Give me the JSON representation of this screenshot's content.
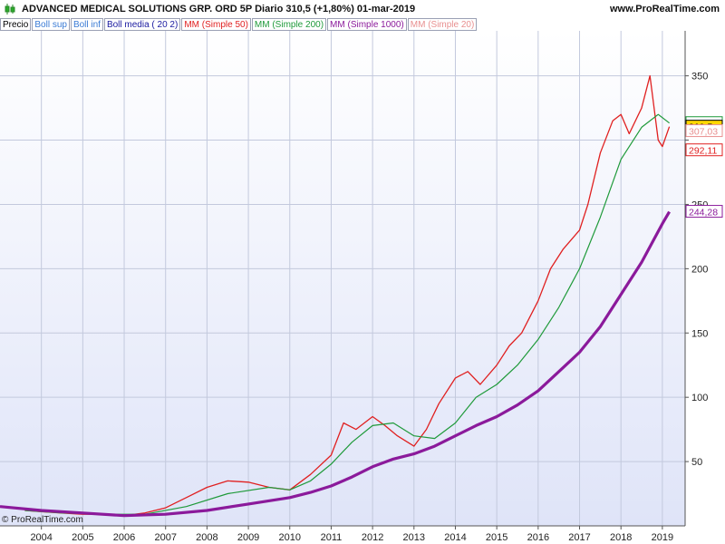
{
  "header": {
    "title": "ADVANCED MEDICAL SOLUTIONS GRP. ORD 5P   Diario   310,5 (+1,80%)   01-mar-2019",
    "site": "www.ProRealTime.com"
  },
  "legend": [
    {
      "label": "Precio",
      "color": "#000000"
    },
    {
      "label": "Boll sup",
      "color": "#3a7bd5"
    },
    {
      "label": "Boll inf",
      "color": "#3a7bd5"
    },
    {
      "label": "Boll media ( 20 2)",
      "color": "#1a1aa0"
    },
    {
      "label": "MM (Simple 50)",
      "color": "#e02020"
    },
    {
      "label": "MM (Simple 200)",
      "color": "#1f9a3a"
    },
    {
      "label": "MM (Simple 1000)",
      "color": "#8b1a9b"
    },
    {
      "label": "MM (Simple 20)",
      "color": "#e89090"
    }
  ],
  "copyright": "© ProRealTime.com",
  "chart_data": {
    "type": "line",
    "title": "ADVANCED MEDICAL SOLUTIONS GRP. ORD 5P",
    "ylim": [
      0,
      385
    ],
    "y_ticks": [
      50,
      100,
      150,
      200,
      250,
      300,
      350
    ],
    "y_tick_labels": [
      "50",
      "100",
      "150",
      "200",
      "250",
      "",
      "350"
    ],
    "x_ticks": [
      2004,
      2005,
      2006,
      2007,
      2008,
      2009,
      2010,
      2011,
      2012,
      2013,
      2014,
      2015,
      2016,
      2017,
      2018,
      2019
    ],
    "x_tick_labels": [
      "2004",
      "2005",
      "2006",
      "2007",
      "2008",
      "2009",
      "2010",
      "2011",
      "2012",
      "2013",
      "2014",
      "2015",
      "2016",
      "2017",
      "2018",
      "2019"
    ],
    "series": [
      {
        "name": "Precio",
        "color": "#e02020",
        "x": [
          2003.6,
          2004.0,
          2004.5,
          2005.0,
          2005.5,
          2006.0,
          2006.5,
          2007.0,
          2007.5,
          2008.0,
          2008.5,
          2009.0,
          2009.5,
          2010.0,
          2010.5,
          2011.0,
          2011.3,
          2011.6,
          2012.0,
          2012.3,
          2012.6,
          2013.0,
          2013.3,
          2013.6,
          2014.0,
          2014.3,
          2014.6,
          2015.0,
          2015.3,
          2015.6,
          2016.0,
          2016.3,
          2016.6,
          2017.0,
          2017.2,
          2017.5,
          2017.8,
          2018.0,
          2018.2,
          2018.5,
          2018.7,
          2018.9,
          2019.0,
          2019.17
        ],
        "y": [
          12,
          11,
          10,
          9,
          9,
          8,
          10,
          14,
          22,
          30,
          35,
          34,
          30,
          28,
          40,
          55,
          80,
          75,
          85,
          78,
          70,
          62,
          75,
          95,
          115,
          120,
          110,
          125,
          140,
          150,
          175,
          200,
          215,
          230,
          250,
          290,
          315,
          320,
          305,
          325,
          350,
          300,
          295,
          310.5
        ]
      },
      {
        "name": "MM (Simple 200)",
        "color": "#1f9a3a",
        "x": [
          2003.6,
          2004.5,
          2005.5,
          2006.5,
          2007.5,
          2008.5,
          2009.5,
          2010.0,
          2010.5,
          2011.0,
          2011.5,
          2012.0,
          2012.5,
          2013.0,
          2013.5,
          2014.0,
          2014.5,
          2015.0,
          2015.5,
          2016.0,
          2016.5,
          2017.0,
          2017.5,
          2018.0,
          2018.5,
          2018.9,
          2019.17
        ],
        "y": [
          12,
          10,
          9,
          9,
          15,
          25,
          30,
          28,
          35,
          48,
          65,
          78,
          80,
          70,
          68,
          80,
          100,
          110,
          125,
          145,
          170,
          200,
          240,
          285,
          310,
          320,
          313.26
        ]
      },
      {
        "name": "MM (Simple 1000)",
        "color": "#8b1a9b",
        "x": [
          2003.0,
          2004.0,
          2005.0,
          2006.0,
          2007.0,
          2008.0,
          2009.0,
          2010.0,
          2010.5,
          2011.0,
          2011.5,
          2012.0,
          2012.5,
          2013.0,
          2013.5,
          2014.0,
          2014.5,
          2015.0,
          2015.5,
          2016.0,
          2016.5,
          2017.0,
          2017.5,
          2018.0,
          2018.5,
          2019.0,
          2019.17
        ],
        "y": [
          15,
          12,
          10,
          8,
          9,
          12,
          17,
          22,
          26,
          31,
          38,
          46,
          52,
          56,
          62,
          70,
          78,
          85,
          94,
          105,
          120,
          135,
          155,
          180,
          205,
          235,
          244.28
        ]
      }
    ],
    "price_labels": [
      {
        "text": "313,26",
        "value": 313.26,
        "color": "#1f9a3a"
      },
      {
        "text": "310,5",
        "value": 310.5,
        "color": "#000000",
        "bg": "#ffd700"
      },
      {
        "text": "307,03",
        "value": 307.03,
        "color": "#e89090"
      },
      {
        "text": "292,11",
        "value": 292.11,
        "color": "#e02020"
      },
      {
        "text": "244,28",
        "value": 244.28,
        "color": "#8b1a9b"
      }
    ]
  }
}
